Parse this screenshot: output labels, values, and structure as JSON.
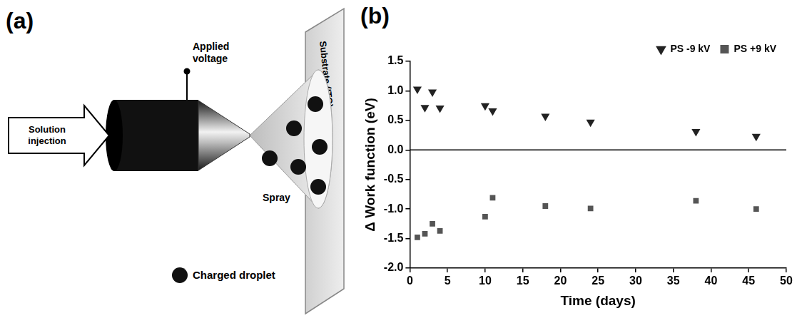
{
  "diagram": {
    "panel_label": "(a)",
    "labels": {
      "applied_voltage": "Applied voltage",
      "solution_injection": "Solution injection",
      "spray": "Spray",
      "substrate": "Substrate (ITO)",
      "droplet_legend": "Charged droplet"
    }
  },
  "chart_data": {
    "panel_label": "(b)",
    "type": "scatter",
    "x_label": "Time (days)",
    "y_label": "Δ Work function (eV)",
    "xlim": [
      0,
      50
    ],
    "xticks": [
      0,
      5,
      10,
      15,
      20,
      25,
      30,
      35,
      40,
      45,
      50
    ],
    "ylim": [
      -2,
      1.5
    ],
    "yticks": [
      {
        "value": -2,
        "label": "-2.0"
      },
      -1.5,
      {
        "value": -1,
        "label": "-1.0"
      },
      -0.5,
      {
        "value": 0,
        "label": "0.0"
      },
      0.5,
      {
        "value": 1,
        "label": "1.0"
      },
      1.5
    ],
    "grid": false,
    "legend": "upper right",
    "reference_lines": [
      0
    ],
    "series": [
      {
        "name": "PS -9 kV",
        "color": "#222222",
        "marker": "triangle_down",
        "x": [
          1,
          2,
          3,
          4,
          10,
          11,
          18,
          24,
          38,
          46
        ],
        "values": [
          1.03,
          0.72,
          0.98,
          0.71,
          0.75,
          0.66,
          0.57,
          0.47,
          0.31,
          0.23
        ]
      },
      {
        "name": "PS +9 kV",
        "color": "#555555",
        "marker": "square",
        "x": [
          1,
          2,
          3,
          4,
          10,
          11,
          18,
          24,
          38,
          46
        ],
        "values": [
          -1.48,
          -1.42,
          -1.25,
          -1.37,
          -1.13,
          -0.81,
          -0.95,
          -0.99,
          -0.86,
          -1.0
        ]
      }
    ]
  }
}
